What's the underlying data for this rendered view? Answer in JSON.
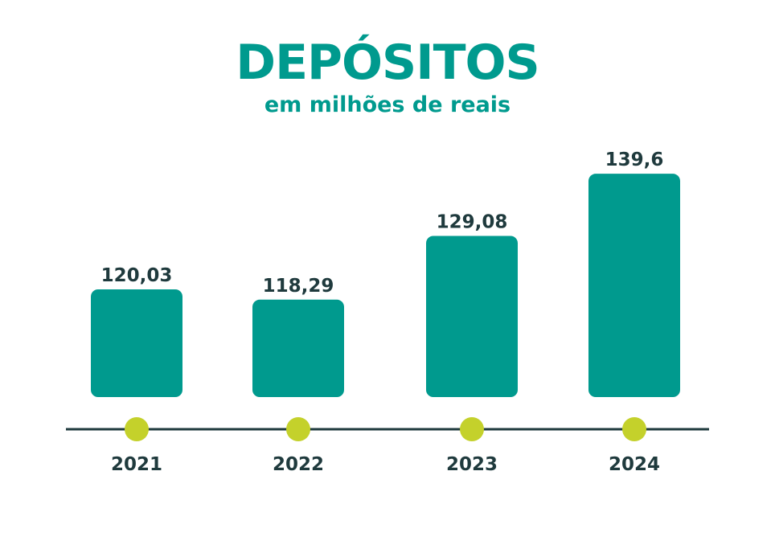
{
  "chart_data": {
    "type": "bar",
    "title": "DEPÓSITOS",
    "subtitle": "em milhões de reais",
    "categories": [
      "2021",
      "2022",
      "2023",
      "2024"
    ],
    "values": [
      120.03,
      118.29,
      129.08,
      139.6
    ],
    "data_labels": [
      "120,03",
      "118,29",
      "129,08",
      "139,6"
    ],
    "grid": false,
    "legend": "none"
  },
  "colors": {
    "title": "#009a8e",
    "bar": "#009a8e",
    "axis_line": "#1f3a3d",
    "marker": "#c4d12b",
    "label": "#1f3a3d"
  }
}
